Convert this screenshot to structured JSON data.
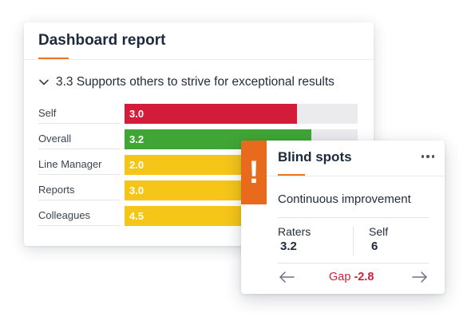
{
  "dashboard": {
    "title": "Dashboard report",
    "section_title": "3.3 Supports others to strive for exceptional results",
    "rows": [
      {
        "label": "Self",
        "value": "3.0",
        "fill": 0.74,
        "color": "#d21c3a"
      },
      {
        "label": "Overall",
        "value": "3.2",
        "fill": 0.8,
        "color": "#3fa535"
      },
      {
        "label": "Line Manager",
        "value": "2.0",
        "fill": 0.52,
        "color": "#f5c518"
      },
      {
        "label": "Reports",
        "value": "3.0",
        "fill": 0.52,
        "color": "#f5c518"
      },
      {
        "label": "Colleagues",
        "value": "4.5",
        "fill": 0.52,
        "color": "#f5c518"
      }
    ]
  },
  "blind_spots": {
    "alert_mark": "!",
    "title": "Blind spots",
    "topic": "Continuous improvement",
    "raters_label": "Raters",
    "raters_value": "3.2",
    "self_label": "Self",
    "self_value": "6",
    "gap_label": "Gap",
    "gap_value": "-2.8",
    "accent_color": "#e86a1c",
    "gap_color": "#d01f3a"
  }
}
